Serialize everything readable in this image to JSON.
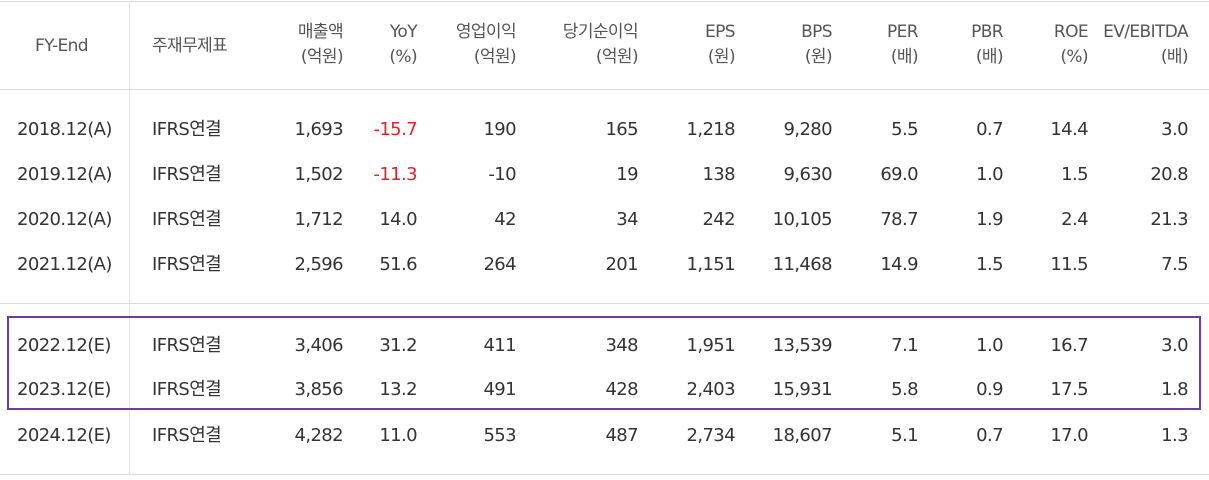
{
  "header": {
    "fy_end": "FY-End",
    "statement": "주재무제표",
    "columns": [
      {
        "label": "매출액",
        "unit": "(억원)"
      },
      {
        "label": "YoY",
        "unit": "(%)"
      },
      {
        "label": "영업이익",
        "unit": "(억원)"
      },
      {
        "label": "당기순이익",
        "unit": "(억원)"
      },
      {
        "label": "EPS",
        "unit": "(원)"
      },
      {
        "label": "BPS",
        "unit": "(원)"
      },
      {
        "label": "PER",
        "unit": "(배)"
      },
      {
        "label": "PBR",
        "unit": "(배)"
      },
      {
        "label": "ROE",
        "unit": "(%)"
      },
      {
        "label": "EV/EBITDA",
        "unit": "(배)"
      }
    ]
  },
  "rows": [
    {
      "fy": "2018.12(A)",
      "statement": "IFRS연결",
      "values": [
        "1,693",
        "-15.7",
        "190",
        "165",
        "1,218",
        "9,280",
        "5.5",
        "0.7",
        "14.4",
        "3.0"
      ]
    },
    {
      "fy": "2019.12(A)",
      "statement": "IFRS연결",
      "values": [
        "1,502",
        "-11.3",
        "-10",
        "19",
        "138",
        "9,630",
        "69.0",
        "1.0",
        "1.5",
        "20.8"
      ]
    },
    {
      "fy": "2020.12(A)",
      "statement": "IFRS연결",
      "values": [
        "1,712",
        "14.0",
        "42",
        "34",
        "242",
        "10,105",
        "78.7",
        "1.9",
        "2.4",
        "21.3"
      ]
    },
    {
      "fy": "2021.12(A)",
      "statement": "IFRS연결",
      "values": [
        "2,596",
        "51.6",
        "264",
        "201",
        "1,151",
        "11,468",
        "14.9",
        "1.5",
        "11.5",
        "7.5"
      ]
    },
    {
      "fy": "2022.12(E)",
      "statement": "IFRS연결",
      "values": [
        "3,406",
        "31.2",
        "411",
        "348",
        "1,951",
        "13,539",
        "7.1",
        "1.0",
        "16.7",
        "3.0"
      ]
    },
    {
      "fy": "2023.12(E)",
      "statement": "IFRS연결",
      "values": [
        "3,856",
        "13.2",
        "491",
        "428",
        "2,403",
        "15,931",
        "5.8",
        "0.9",
        "17.5",
        "1.8"
      ]
    },
    {
      "fy": "2024.12(E)",
      "statement": "IFRS연결",
      "values": [
        "4,282",
        "11.0",
        "553",
        "487",
        "2,734",
        "18,607",
        "5.1",
        "0.7",
        "17.0",
        "1.3"
      ]
    }
  ],
  "colors": {
    "negative": "#e0242b",
    "highlight_border": "#6b3fa0"
  }
}
